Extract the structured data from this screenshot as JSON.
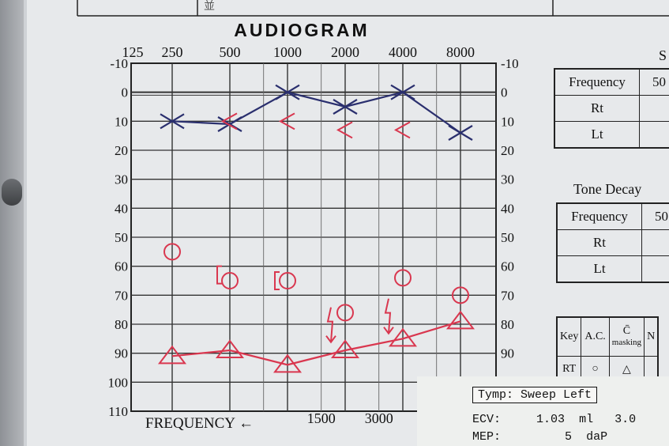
{
  "chart_data": {
    "type": "line",
    "title": "AUDIOGRAM",
    "xlabel": "FREQUENCY",
    "xlabel_arrow": "←",
    "x": [
      250,
      500,
      1000,
      2000,
      4000,
      8000
    ],
    "x_tick_labels": [
      "125",
      "250",
      "500",
      "1000",
      "2000",
      "4000",
      "8000"
    ],
    "x_bottom_labels": [
      "1500",
      "3000"
    ],
    "ylim": [
      -10,
      110
    ],
    "y_ticks_left": [
      "-10",
      "0",
      "10",
      "20",
      "30",
      "40",
      "50",
      "60",
      "70",
      "80",
      "90",
      "100",
      "110"
    ],
    "y_ticks_right": [
      "-10",
      "0",
      "10",
      "20",
      "30",
      "40",
      "50",
      "60",
      "70",
      "80",
      "90",
      "100"
    ],
    "y_reversed": true,
    "grid": true,
    "series": [
      {
        "marker": "X",
        "color": "#2a2f6e",
        "points": [
          [
            250,
            10
          ],
          [
            500,
            11
          ],
          [
            1000,
            0
          ],
          [
            2000,
            5
          ],
          [
            4000,
            0
          ],
          [
            8000,
            14
          ]
        ]
      },
      {
        "marker": "triangle",
        "color": "#d9374f",
        "points": [
          [
            250,
            91
          ],
          [
            500,
            89
          ],
          [
            1000,
            94
          ],
          [
            2000,
            89
          ],
          [
            4000,
            85
          ],
          [
            8000,
            79
          ]
        ]
      },
      {
        "marker": "<",
        "color": "#d9374f",
        "points": [
          [
            500,
            10
          ],
          [
            1000,
            10
          ],
          [
            2000,
            13
          ],
          [
            4000,
            13
          ]
        ]
      },
      {
        "marker": "O",
        "color": "#d9374f",
        "points": [
          [
            250,
            55
          ],
          [
            500,
            65
          ],
          [
            1000,
            65
          ],
          [
            2000,
            76
          ],
          [
            4000,
            64
          ],
          [
            8000,
            70
          ]
        ]
      },
      {
        "marker": "[",
        "color": "#d9374f",
        "points": [
          [
            500,
            63
          ],
          [
            1000,
            65
          ]
        ]
      },
      {
        "marker": "down-arrow",
        "color": "#d9374f",
        "points": [
          [
            2000,
            78
          ],
          [
            4000,
            75
          ]
        ]
      }
    ]
  },
  "speech_table": {
    "header_partial": "S",
    "rows": [
      {
        "label": "Frequency",
        "value": "50"
      },
      {
        "label": "Rt",
        "value": ""
      },
      {
        "label": "Lt",
        "value": ""
      }
    ]
  },
  "tone_decay": {
    "title": "Tone Decay",
    "rows": [
      {
        "label": "Frequency",
        "value": "50"
      },
      {
        "label": "Rt",
        "value": ""
      },
      {
        "label": "Lt",
        "value": ""
      }
    ]
  },
  "key_table": {
    "headers": [
      "Key",
      "A.C.",
      "C̄",
      "masking",
      "N"
    ],
    "row_label": "RT",
    "ac_symbol": "○",
    "masked_symbol": "△"
  },
  "tympanometry": {
    "title": "Tymp: Sweep Left",
    "ecv_label": "ECV:",
    "ecv_value": "1.03",
    "ecv_unit": "ml",
    "ecv_extra": "3.0",
    "mep_label": "MEP:",
    "mep_value": "5",
    "mep_unit": "daP"
  },
  "top_partial_text": "並"
}
